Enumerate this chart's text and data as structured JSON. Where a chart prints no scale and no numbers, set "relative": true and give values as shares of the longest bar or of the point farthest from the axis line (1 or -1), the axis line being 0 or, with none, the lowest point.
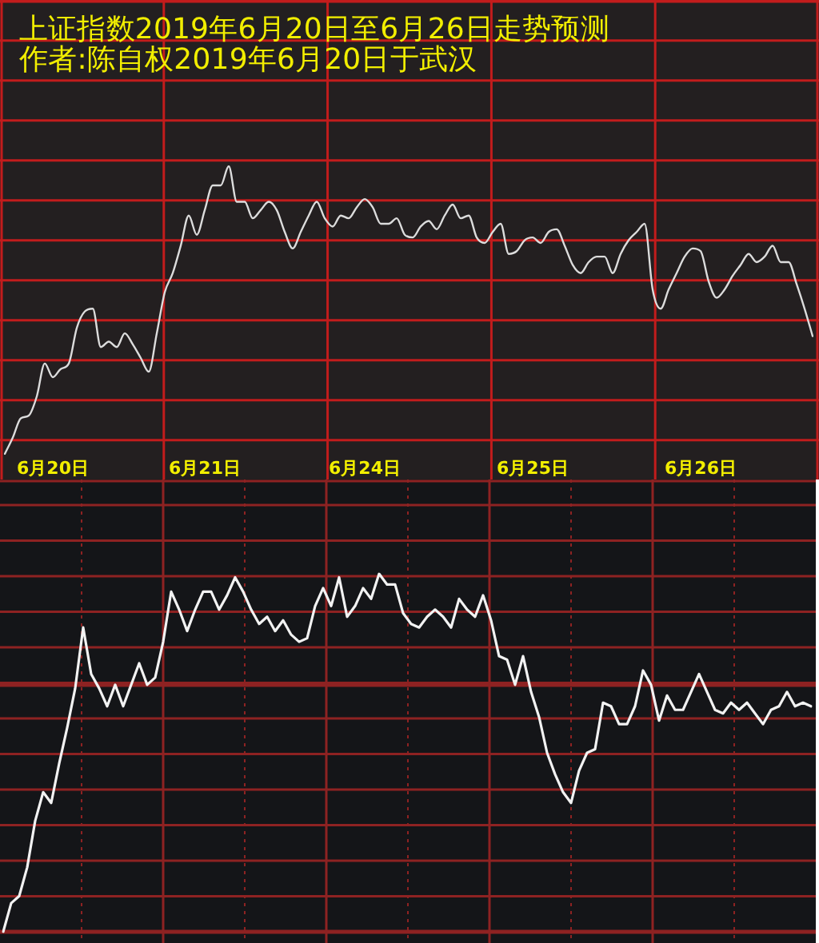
{
  "chart_data": [
    {
      "type": "line",
      "title": "上证指数2019年6月20日至6月26日走势预测",
      "subtitle": "作者:陈自权2019年6月20日于武汉",
      "relative": true,
      "color": "#dcdcdc",
      "grid": true,
      "categories": [
        null,
        null,
        null,
        null,
        null,
        null,
        "6月20日",
        null,
        null,
        null,
        null,
        null,
        null,
        null,
        null,
        null,
        null,
        null,
        null,
        null,
        null,
        null,
        null,
        null,
        null,
        "6月21日",
        null,
        null,
        null,
        null,
        null,
        null,
        null,
        null,
        null,
        null,
        null,
        null,
        null,
        null,
        null,
        null,
        null,
        null,
        null,
        "6月24日",
        null,
        null,
        null,
        null,
        null,
        null,
        null,
        null,
        null,
        null,
        null,
        null,
        null,
        null,
        null,
        null,
        null,
        null,
        null,
        null,
        "6月25日",
        null,
        null,
        null,
        null,
        null,
        null,
        null,
        null,
        null,
        null,
        null,
        null,
        null,
        null,
        null,
        null,
        null,
        null,
        null,
        null,
        "6月26日",
        null,
        null,
        null,
        null,
        null,
        null,
        null,
        null,
        null,
        null,
        null,
        null,
        null,
        null
      ],
      "values": [
        -0.05,
        0.01,
        0.08,
        0.09,
        0.16,
        0.28,
        0.23,
        0.26,
        0.28,
        0.41,
        0.47,
        0.48,
        0.34,
        0.36,
        0.34,
        0.39,
        0.35,
        0.3,
        0.25,
        0.39,
        0.54,
        0.61,
        0.71,
        0.82,
        0.75,
        0.84,
        0.93,
        0.93,
        1,
        0.87,
        0.87,
        0.81,
        0.84,
        0.87,
        0.84,
        0.76,
        0.7,
        0.76,
        0.82,
        0.87,
        0.81,
        0.78,
        0.82,
        0.81,
        0.85,
        0.88,
        0.85,
        0.79,
        0.79,
        0.81,
        0.75,
        0.74,
        0.78,
        0.8,
        0.77,
        0.82,
        0.86,
        0.81,
        0.82,
        0.74,
        0.72,
        0.76,
        0.79,
        0.68,
        0.69,
        0.73,
        0.74,
        0.72,
        0.76,
        0.77,
        0.71,
        0.64,
        0.61,
        0.65,
        0.67,
        0.67,
        0.61,
        0.68,
        0.73,
        0.76,
        0.79,
        0.55,
        0.48,
        0.55,
        0.61,
        0.67,
        0.7,
        0.69,
        0.58,
        0.52,
        0.55,
        0.6,
        0.64,
        0.68,
        0.65,
        0.67,
        0.71,
        0.65,
        0.65,
        0.57,
        0.48,
        0.38
      ]
    },
    {
      "type": "line",
      "relative": true,
      "color": "#f2f2f2",
      "grid": true,
      "categories": [
        null,
        null,
        null,
        null,
        null,
        null,
        null,
        null,
        null,
        null,
        null,
        null,
        null,
        null,
        null,
        null,
        null,
        null,
        null,
        null,
        null,
        null,
        null,
        null,
        null,
        null,
        null,
        null,
        null,
        null,
        null,
        null,
        null,
        null,
        null,
        null,
        null,
        null,
        null,
        null,
        null,
        null,
        null,
        null,
        null,
        null,
        null,
        null,
        null,
        null,
        null,
        null,
        null,
        null,
        null,
        null,
        null,
        null,
        null,
        null,
        null,
        null,
        null,
        null,
        null,
        null,
        null,
        null,
        null,
        null,
        null,
        null,
        null,
        null,
        null,
        null,
        null,
        null,
        null,
        null,
        null,
        null,
        null,
        null,
        null,
        null,
        null,
        null,
        null,
        null,
        null,
        null,
        null,
        null,
        null,
        null,
        null,
        null,
        null,
        null,
        null,
        null
      ],
      "values": [
        0,
        0.08,
        0.1,
        0.18,
        0.31,
        0.39,
        0.36,
        0.47,
        0.57,
        0.68,
        0.85,
        0.72,
        0.68,
        0.63,
        0.69,
        0.63,
        0.69,
        0.75,
        0.69,
        0.71,
        0.81,
        0.95,
        0.9,
        0.84,
        0.9,
        0.95,
        0.95,
        0.9,
        0.94,
        0.99,
        0.95,
        0.9,
        0.86,
        0.88,
        0.84,
        0.87,
        0.83,
        0.81,
        0.82,
        0.91,
        0.96,
        0.91,
        0.99,
        0.88,
        0.91,
        0.96,
        0.93,
        1,
        0.97,
        0.97,
        0.89,
        0.86,
        0.85,
        0.88,
        0.9,
        0.88,
        0.85,
        0.93,
        0.9,
        0.88,
        0.94,
        0.87,
        0.77,
        0.76,
        0.69,
        0.77,
        0.67,
        0.6,
        0.5,
        0.44,
        0.39,
        0.36,
        0.45,
        0.5,
        0.51,
        0.64,
        0.63,
        0.58,
        0.58,
        0.63,
        0.73,
        0.69,
        0.59,
        0.66,
        0.62,
        0.62,
        0.67,
        0.72,
        0.67,
        0.62,
        0.61,
        0.64,
        0.62,
        0.64,
        0.61,
        0.58,
        0.62,
        0.63,
        0.67,
        0.63,
        0.64,
        0.63
      ],
      "ref_lines": [
        {
          "axis": "y",
          "value": 0.69,
          "color": "#8e2222"
        }
      ]
    }
  ]
}
